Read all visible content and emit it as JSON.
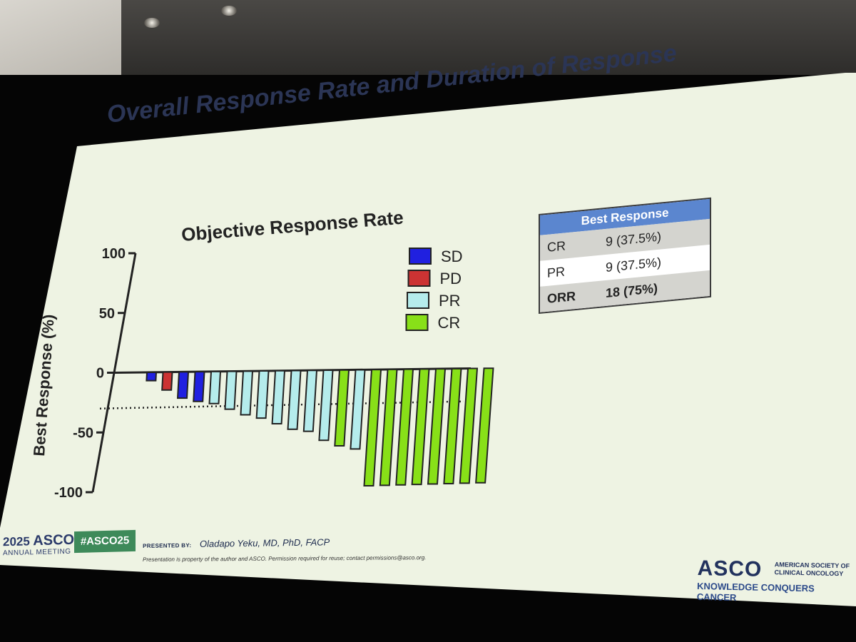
{
  "slide": {
    "title": "Overall Response Rate and Duration of Response"
  },
  "chart_data": {
    "type": "bar",
    "title": "Objective Response Rate",
    "xlabel": "",
    "ylabel": "Best Response (%)",
    "ylim": [
      -100,
      100
    ],
    "yticks": [
      100,
      50,
      0,
      -50,
      -100
    ],
    "threshold_line": -30,
    "legend": {
      "placement": "top-right",
      "entries": [
        {
          "label": "SD",
          "color": "#2020e0"
        },
        {
          "label": "PD",
          "color": "#cc3333"
        },
        {
          "label": "PR",
          "color": "#b5ecec"
        },
        {
          "label": "CR",
          "color": "#88e018"
        }
      ]
    },
    "bars": [
      {
        "value": -7,
        "category": "SD"
      },
      {
        "value": -15,
        "category": "PD"
      },
      {
        "value": -22,
        "category": "SD"
      },
      {
        "value": -25,
        "category": "SD"
      },
      {
        "value": -27,
        "category": "PR"
      },
      {
        "value": -32,
        "category": "PR"
      },
      {
        "value": -37,
        "category": "PR"
      },
      {
        "value": -40,
        "category": "PR"
      },
      {
        "value": -45,
        "category": "PR"
      },
      {
        "value": -50,
        "category": "PR"
      },
      {
        "value": -52,
        "category": "PR"
      },
      {
        "value": -60,
        "category": "PR"
      },
      {
        "value": -65,
        "category": "CR"
      },
      {
        "value": -68,
        "category": "PR"
      },
      {
        "value": -100,
        "category": "CR"
      },
      {
        "value": -100,
        "category": "CR"
      },
      {
        "value": -100,
        "category": "CR"
      },
      {
        "value": -100,
        "category": "CR"
      },
      {
        "value": -100,
        "category": "CR"
      },
      {
        "value": -100,
        "category": "CR"
      },
      {
        "value": -100,
        "category": "CR"
      },
      {
        "value": -100,
        "category": "CR"
      }
    ]
  },
  "table": {
    "header": "Best Response",
    "rows": [
      {
        "label": "CR",
        "value": "9 (37.5%)"
      },
      {
        "label": "PR",
        "value": "9 (37.5%)"
      },
      {
        "label": "ORR",
        "value": "18 (75%)"
      }
    ]
  },
  "footer": {
    "year": "2025",
    "org": "ASCO",
    "meeting": "ANNUAL MEETING",
    "hashtag": "#ASCO25",
    "presented_label": "PRESENTED BY:",
    "presenter": "Oladapo Yeku, MD, PhD, FACP",
    "disclaimer": "Presentation is property of the author and ASCO. Permission required for reuse; contact permissions@asco.org.",
    "logo_text": "ASCO",
    "society_name": "AMERICAN SOCIETY OF CLINICAL ONCOLOGY",
    "tagline": "KNOWLEDGE CONQUERS CANCER"
  }
}
